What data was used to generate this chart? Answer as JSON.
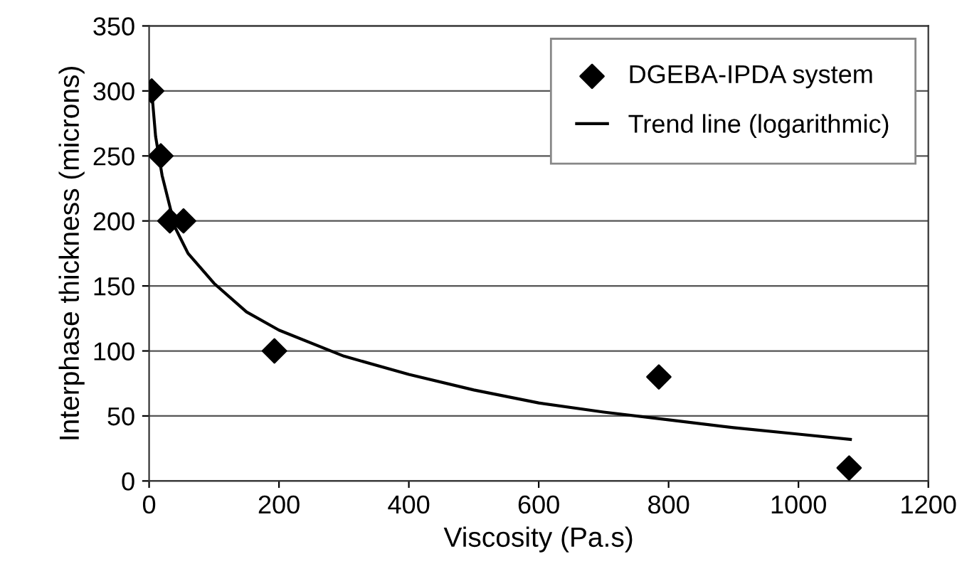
{
  "chart_data": {
    "type": "scatter",
    "xlabel": "Viscosity (Pa.s)",
    "ylabel": "Interphase thickness (microns)",
    "xlim": [
      0,
      1200
    ],
    "ylim": [
      0,
      350
    ],
    "xticks": [
      0,
      200,
      400,
      600,
      800,
      1000,
      1200
    ],
    "yticks": [
      0,
      50,
      100,
      150,
      200,
      250,
      300,
      350
    ],
    "grid": "y",
    "legend": "top right",
    "series": [
      {
        "name": "DGEBA-IPDA system",
        "marker": "diamond",
        "color": "#000000",
        "x": [
          4,
          18,
          32,
          53,
          193,
          785,
          1078
        ],
        "values": [
          300,
          250,
          200,
          200,
          100,
          80,
          10
        ]
      },
      {
        "name": "Trend line (logarithmic)",
        "type": "line",
        "marker": "none",
        "line_style": "solid",
        "color": "#000000",
        "x": [
          4,
          10,
          20,
          40,
          60,
          100,
          150,
          200,
          300,
          400,
          500,
          600,
          700,
          800,
          900,
          1000,
          1080
        ],
        "values": [
          300,
          265,
          235,
          195,
          175,
          152,
          130,
          116,
          96,
          82,
          70,
          60,
          53,
          47,
          41,
          36,
          32
        ]
      }
    ]
  }
}
